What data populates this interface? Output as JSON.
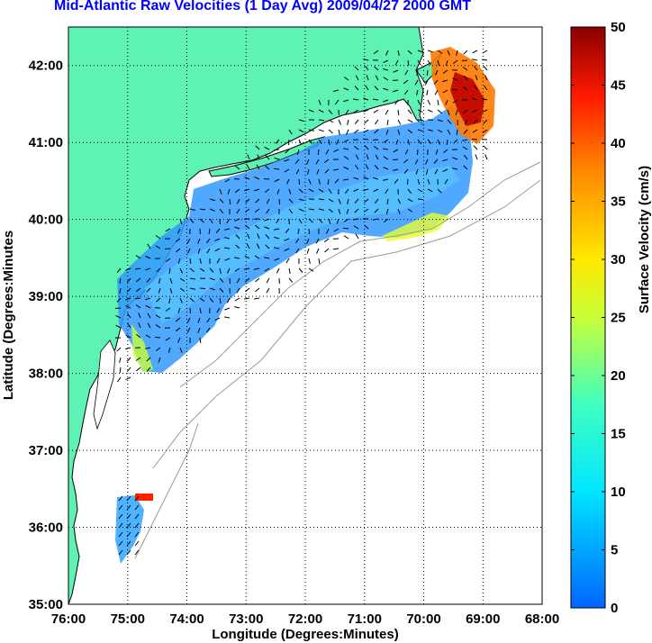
{
  "title": "Mid-Atlantic Raw Velocities (1 Day Avg) 2009/04/27 2000 GMT",
  "map": {
    "xlabel": "Longitude (Degrees:Minutes)",
    "ylabel": "Latitude (Degrees:Minutes",
    "x_ticks": [
      "76:00",
      "75:00",
      "74:00",
      "73:00",
      "72:00",
      "71:00",
      "70:00",
      "69:00",
      "68:00"
    ],
    "y_ticks": [
      "42:00",
      "41:00",
      "40:00",
      "39:00",
      "38:00",
      "37:00",
      "36:00",
      "35:00"
    ],
    "lon_range": [
      -76,
      -68
    ],
    "lat_range": [
      35,
      42.5
    ],
    "land_color": "#5ef2b4",
    "grid": "dotted"
  },
  "colorbar": {
    "label": "Surface Velocity (cm/s)",
    "ticks": [
      "50",
      "45",
      "40",
      "35",
      "30",
      "25",
      "20",
      "15",
      "10",
      "5",
      "0"
    ],
    "range": [
      0,
      50
    ],
    "colormap": "jet"
  }
}
